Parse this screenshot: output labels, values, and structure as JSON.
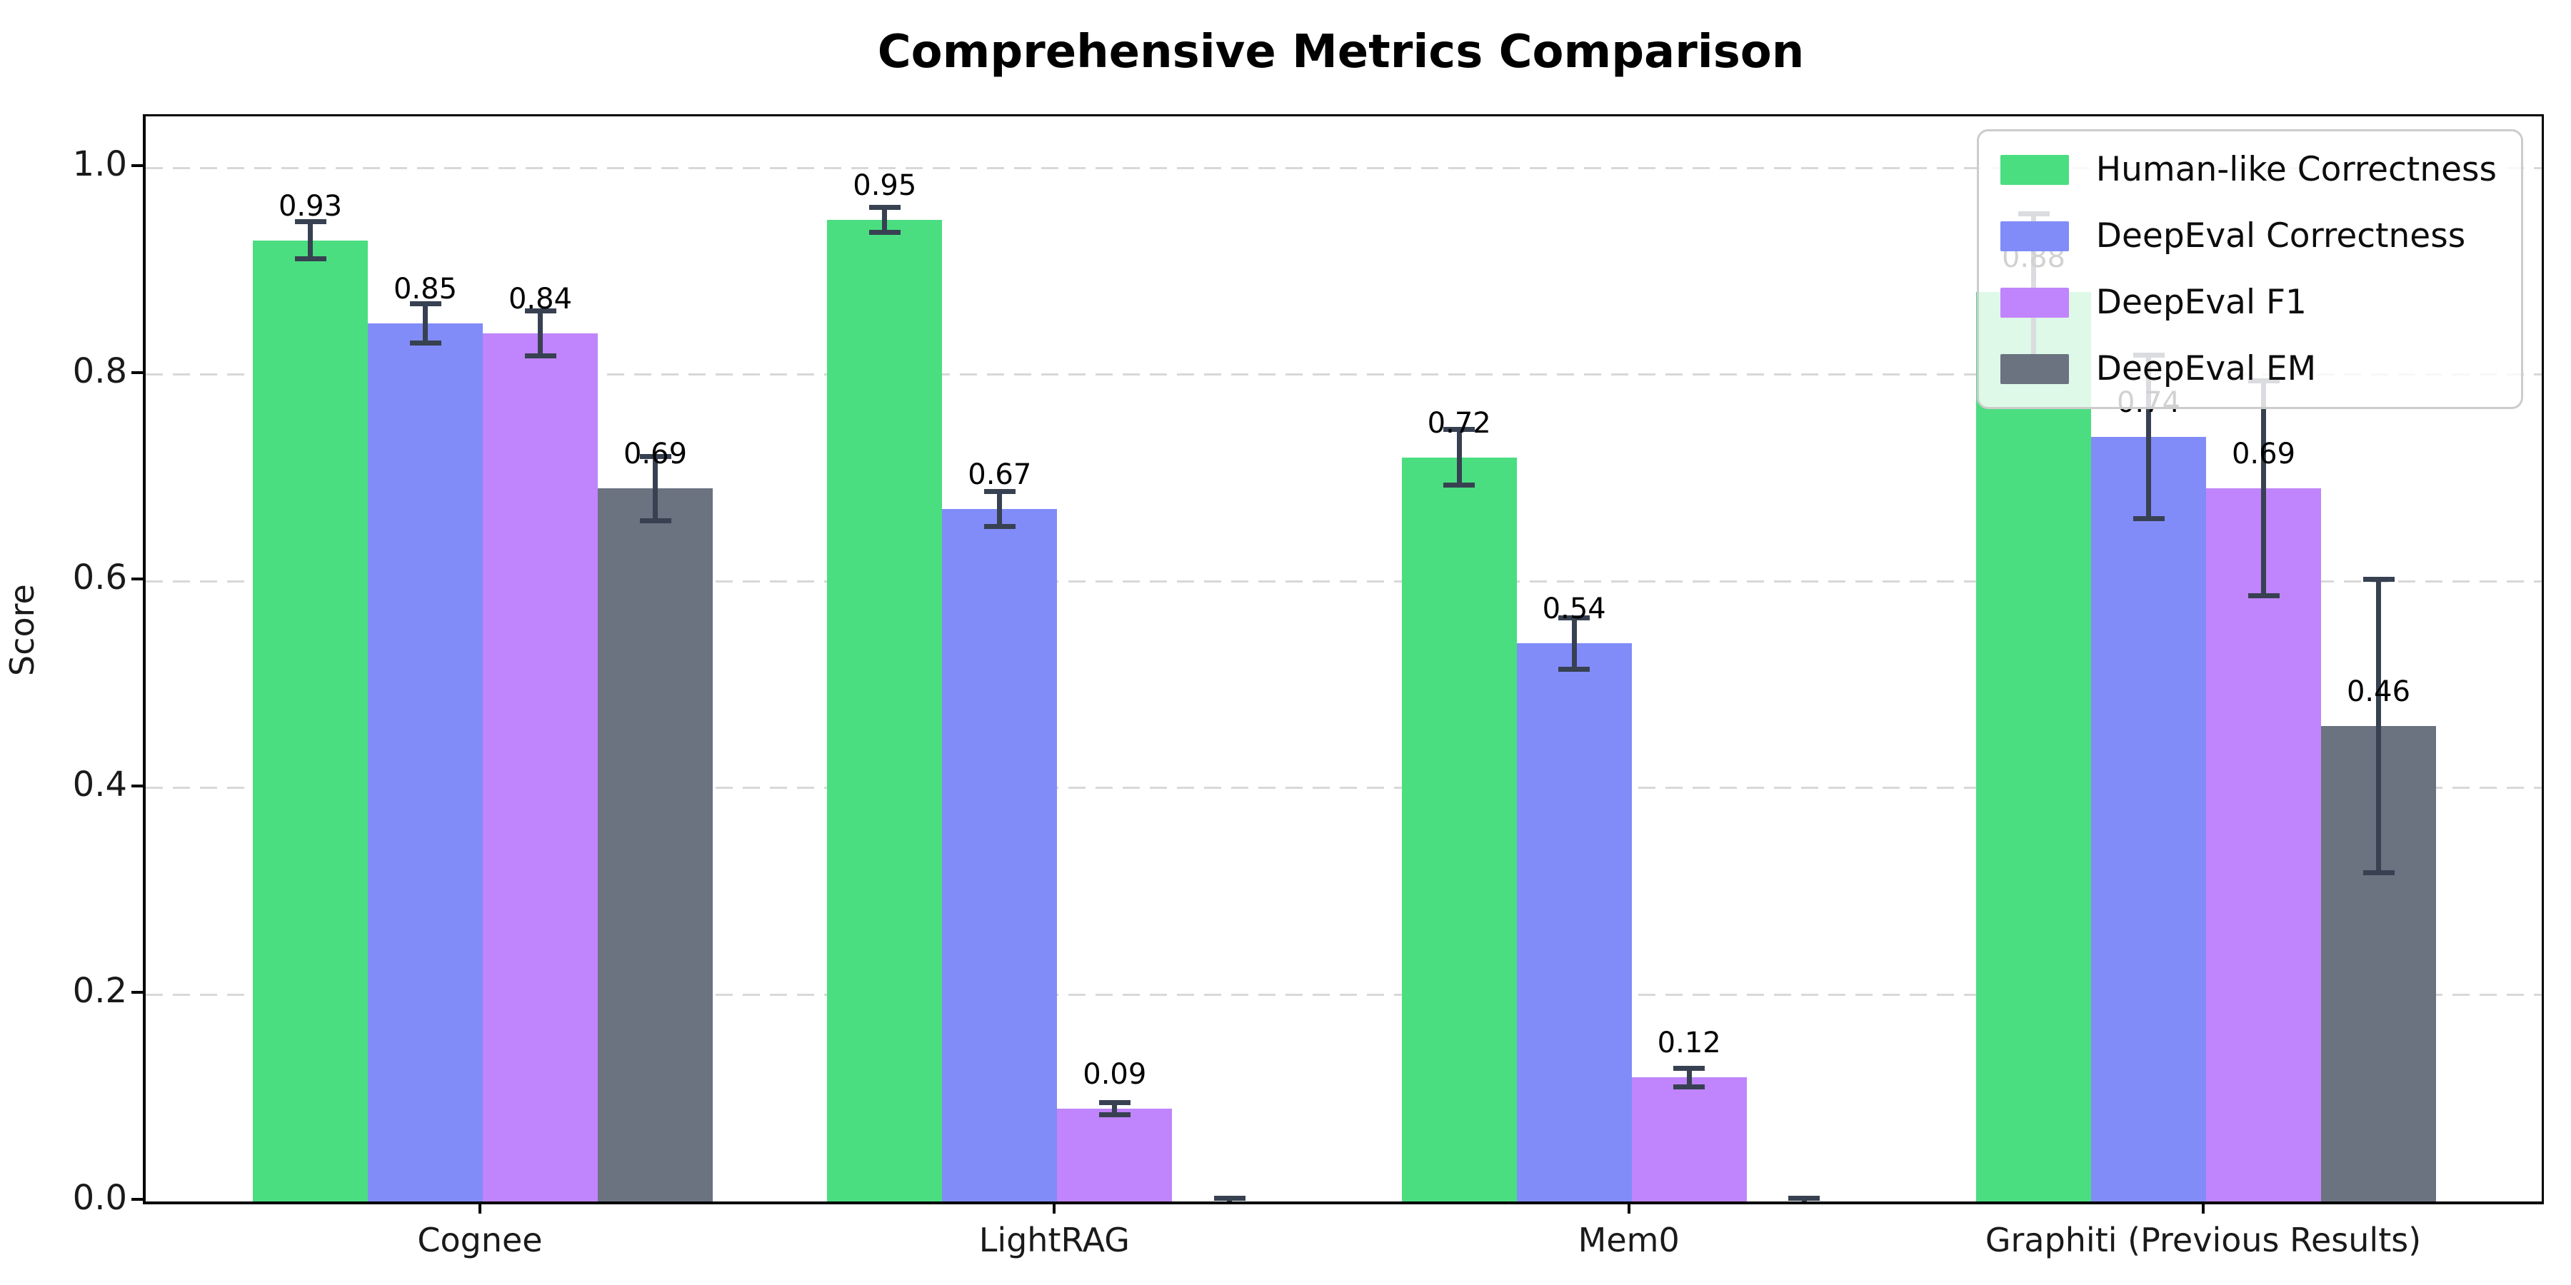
{
  "chart_data": {
    "type": "bar",
    "title": "Comprehensive Metrics Comparison",
    "ylabel": "Score",
    "xlabel": "",
    "categories": [
      "Cognee",
      "LightRAG",
      "Mem0",
      "Graphiti (Previous Results)"
    ],
    "series": [
      {
        "name": "Human-like Correctness",
        "color": "#4ade80",
        "values": [
          0.93,
          0.95,
          0.72,
          0.88
        ],
        "errors": [
          0.018,
          0.012,
          0.027,
          0.076
        ],
        "value_labels": [
          "0.93",
          "0.95",
          "0.72",
          "0.88"
        ]
      },
      {
        "name": "DeepEval Correctness",
        "color": "#818cf8",
        "values": [
          0.85,
          0.67,
          0.54,
          0.74
        ],
        "errors": [
          0.019,
          0.017,
          0.025,
          0.079
        ],
        "value_labels": [
          "0.85",
          "0.67",
          "0.54",
          "0.74"
        ]
      },
      {
        "name": "DeepEval F1",
        "color": "#c084fc",
        "values": [
          0.84,
          0.09,
          0.12,
          0.69
        ],
        "errors": [
          0.022,
          0.006,
          0.009,
          0.104
        ],
        "value_labels": [
          "0.84",
          "0.09",
          "0.12",
          "0.69"
        ]
      },
      {
        "name": "DeepEval EM",
        "color": "#6b7280",
        "values": [
          0.69,
          0.0,
          0.0,
          0.46
        ],
        "errors": [
          0.031,
          0.003,
          0.003,
          0.142
        ],
        "value_labels": [
          "0.69",
          "",
          "",
          "0.46"
        ]
      }
    ],
    "yticks": [
      {
        "value": 0.0,
        "label": "0.0"
      },
      {
        "value": 0.2,
        "label": "0.2"
      },
      {
        "value": 0.4,
        "label": "0.4"
      },
      {
        "value": 0.6,
        "label": "0.6"
      },
      {
        "value": 0.8,
        "label": "0.8"
      },
      {
        "value": 1.0,
        "label": "1.0"
      }
    ],
    "ylim": [
      0,
      1.05
    ],
    "grid": "horizontal-dashed",
    "legend_position": "upper-right",
    "error_bar_color": "#374151"
  }
}
